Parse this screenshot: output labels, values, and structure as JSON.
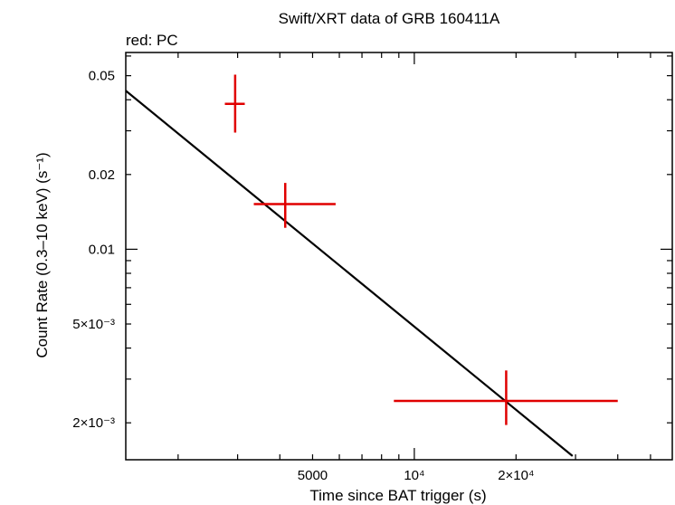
{
  "chart_data": {
    "type": "scatter",
    "title": "Swift/XRT data of GRB 160411A",
    "subtitle": "red: PC",
    "xlabel": "Time since BAT trigger (s)",
    "ylabel": "Count Rate (0.3–10 keV) (s⁻¹)",
    "x_scale": "log",
    "y_scale": "log",
    "xlim": [
      1400,
      58000
    ],
    "ylim": [
      0.00142,
      0.062
    ],
    "grid": false,
    "x_ticks": [
      {
        "value": 5000,
        "label": "5000"
      },
      {
        "value": 10000,
        "label": "10⁴"
      },
      {
        "value": 20000,
        "label": "2×10⁴"
      }
    ],
    "y_ticks": [
      {
        "value": 0.05,
        "label": "0.05"
      },
      {
        "value": 0.02,
        "label": "0.02"
      },
      {
        "value": 0.01,
        "label": "0.01"
      },
      {
        "value": 0.005,
        "label": "5×10⁻³"
      },
      {
        "value": 0.002,
        "label": "2×10⁻³"
      }
    ],
    "series": [
      {
        "color": "#e00000",
        "points": [
          {
            "x": 2950,
            "xlo": 2750,
            "xhi": 3150,
            "y": 0.0385,
            "ylo": 0.0295,
            "yhi": 0.0505
          },
          {
            "x": 4150,
            "xlo": 3350,
            "xhi": 5850,
            "y": 0.0152,
            "ylo": 0.0122,
            "yhi": 0.0185
          },
          {
            "x": 18700,
            "xlo": 8700,
            "xhi": 40000,
            "y": 0.00245,
            "ylo": 0.00196,
            "yhi": 0.00325
          }
        ]
      }
    ],
    "model": {
      "type": "power-law",
      "color": "#000000",
      "points": [
        {
          "x": 1400,
          "y": 0.0435
        },
        {
          "x": 29400,
          "y": 0.00147
        }
      ]
    }
  }
}
